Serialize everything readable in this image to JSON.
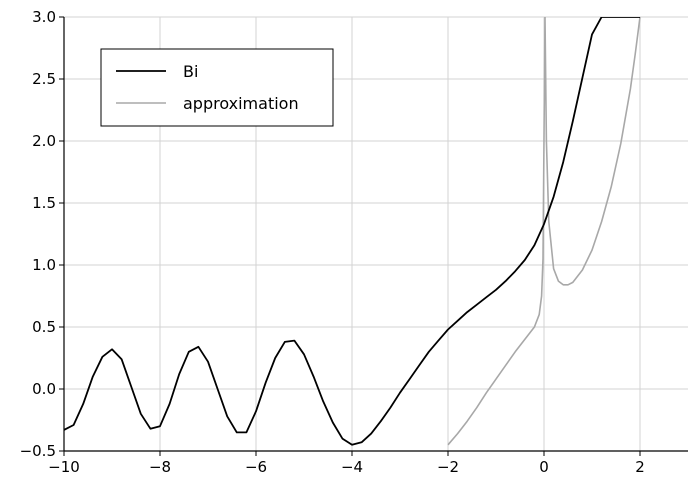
{
  "chart_data": {
    "type": "line",
    "title": "",
    "xlabel": "",
    "ylabel": "",
    "xlim": [
      -10,
      3
    ],
    "ylim": [
      -0.5,
      3.0
    ],
    "xticks": [
      -10,
      -8,
      -6,
      -4,
      -2,
      0,
      2
    ],
    "yticks": [
      -0.5,
      0.0,
      0.5,
      1.0,
      1.5,
      2.0,
      2.5,
      3.0
    ],
    "xtick_labels": [
      "−10",
      "−8",
      "−6",
      "−4",
      "−2",
      "0",
      "2"
    ],
    "ytick_labels": [
      "−0.5",
      "0.0",
      "0.5",
      "1.0",
      "1.5",
      "2.0",
      "2.5",
      "3.0"
    ],
    "grid": true,
    "legend": "top-left",
    "series": [
      {
        "name": "Bi",
        "color": "#000000",
        "x": [
          -10.0,
          -9.8,
          -9.6,
          -9.4,
          -9.2,
          -9.0,
          -8.8,
          -8.6,
          -8.4,
          -8.2,
          -8.0,
          -7.8,
          -7.6,
          -7.4,
          -7.2,
          -7.0,
          -6.8,
          -6.6,
          -6.4,
          -6.2,
          -6.0,
          -5.8,
          -5.6,
          -5.4,
          -5.2,
          -5.0,
          -4.8,
          -4.6,
          -4.4,
          -4.2,
          -4.0,
          -3.8,
          -3.6,
          -3.4,
          -3.2,
          -3.0,
          -2.8,
          -2.6,
          -2.4,
          -2.2,
          -2.0,
          -1.8,
          -1.6,
          -1.4,
          -1.2,
          -1.0,
          -0.8,
          -0.6,
          -0.4,
          -0.2,
          0.0,
          0.2,
          0.4,
          0.6,
          0.8,
          1.0,
          1.2,
          1.4,
          1.6,
          1.8,
          1.9,
          2.0
        ],
        "y": [
          -0.33,
          -0.29,
          -0.12,
          0.1,
          0.26,
          0.32,
          0.24,
          0.02,
          -0.2,
          -0.32,
          -0.3,
          -0.12,
          0.12,
          0.3,
          0.34,
          0.22,
          0.0,
          -0.22,
          -0.35,
          -0.35,
          -0.18,
          0.05,
          0.25,
          0.38,
          0.39,
          0.28,
          0.1,
          -0.1,
          -0.27,
          -0.4,
          -0.45,
          -0.43,
          -0.36,
          -0.26,
          -0.15,
          -0.03,
          0.08,
          0.19,
          0.3,
          0.39,
          0.48,
          0.55,
          0.62,
          0.68,
          0.74,
          0.8,
          0.87,
          0.95,
          1.04,
          1.16,
          1.33,
          1.55,
          1.83,
          2.16,
          2.51,
          2.86,
          3.0,
          3.0,
          3.0,
          3.0,
          3.0,
          3.0
        ]
      },
      {
        "name": "approximation",
        "color": "#a8a8a8",
        "x": [
          -2.0,
          -1.8,
          -1.6,
          -1.4,
          -1.2,
          -1.0,
          -0.8,
          -0.6,
          -0.4,
          -0.2,
          -0.1,
          -0.05,
          -0.02,
          0.02,
          0.05,
          0.1,
          0.2,
          0.3,
          0.4,
          0.5,
          0.6,
          0.8,
          1.0,
          1.2,
          1.4,
          1.6,
          1.8,
          1.9,
          2.0
        ],
        "y": [
          -0.45,
          -0.36,
          -0.26,
          -0.15,
          -0.03,
          0.08,
          0.19,
          0.3,
          0.4,
          0.5,
          0.6,
          0.75,
          1.05,
          3.0,
          2.0,
          1.35,
          0.97,
          0.87,
          0.84,
          0.84,
          0.86,
          0.96,
          1.12,
          1.35,
          1.63,
          1.98,
          2.42,
          2.7,
          3.0
        ]
      }
    ]
  }
}
